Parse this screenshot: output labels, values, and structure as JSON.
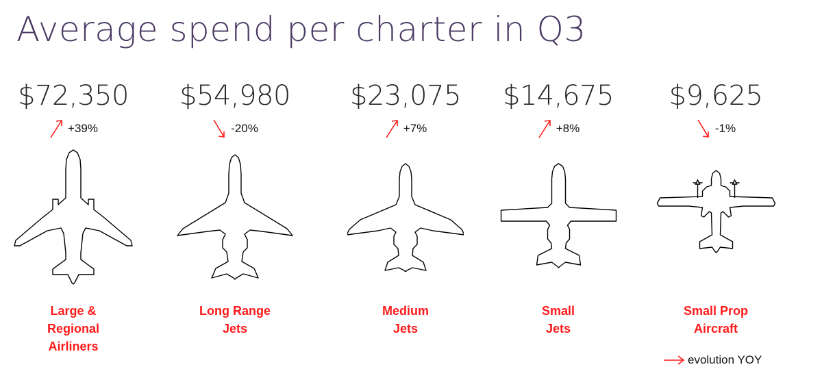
{
  "chart_data": {
    "type": "bar",
    "title": "Average spend per charter in Q3",
    "categories": [
      "Large & Regional Airliners",
      "Long Range Jets",
      "Medium Jets",
      "Small Jets",
      "Small Prop Aircraft"
    ],
    "series": [
      {
        "values": [
          72350,
          54980,
          23075,
          14675,
          9625
        ]
      }
    ],
    "items": [
      {
        "price": "$72,350",
        "change": "+39%",
        "direction": "up",
        "label_lines": [
          "Large &",
          "Regional",
          "Airliners"
        ],
        "icon": "airliner-icon"
      },
      {
        "price": "$54,980",
        "change": "-20%",
        "direction": "down",
        "label_lines": [
          "Long Range",
          "Jets"
        ],
        "icon": "long-range-jet-icon"
      },
      {
        "price": "$23,075",
        "change": "+7%",
        "direction": "up",
        "label_lines": [
          "Medium",
          "Jets"
        ],
        "icon": "medium-jet-icon"
      },
      {
        "price": "$14,675",
        "change": "+8%",
        "direction": "up",
        "label_lines": [
          "Small",
          "Jets"
        ],
        "icon": "small-jet-icon"
      },
      {
        "price": "$9,625",
        "change": "-1%",
        "direction": "down",
        "label_lines": [
          "Small Prop",
          "Aircraft"
        ],
        "icon": "prop-aircraft-icon"
      }
    ],
    "legend": {
      "text": "evolution YOY",
      "placement": "bottom-right"
    },
    "colors": {
      "title": "#4a3a63",
      "arrow": "#ff1a1a",
      "label": "#ff1a1a",
      "outline": "#000000"
    }
  }
}
